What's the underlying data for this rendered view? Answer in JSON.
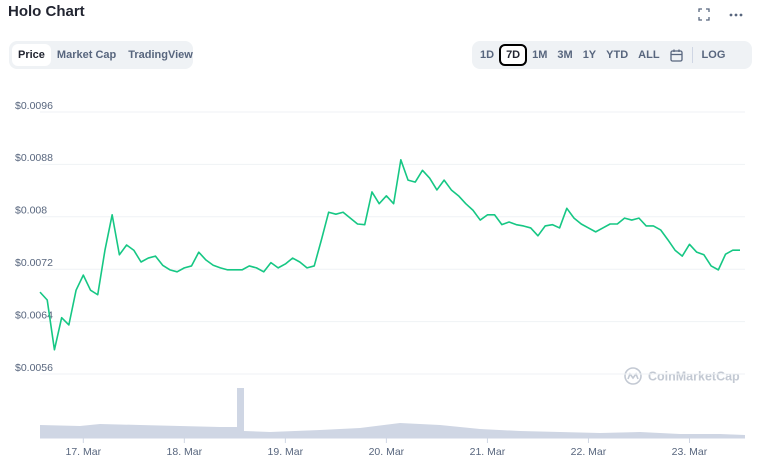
{
  "ui": {
    "tabs": [
      "Price",
      "Market Cap",
      "TradingView"
    ],
    "active_tab": "Price",
    "ranges": [
      "1D",
      "7D",
      "1M",
      "3M",
      "1Y",
      "YTD",
      "ALL"
    ],
    "active_range": "7D",
    "log": "LOG"
  },
  "chart_data": {
    "type": "line",
    "title": "Holo Chart",
    "watermark": "CoinMarketCap",
    "color": "#16c784",
    "grid": true,
    "ylim": [
      0.0051,
      0.0099
    ],
    "yticks": [
      {
        "value": 0.0096,
        "label": "$0.0096"
      },
      {
        "value": 0.0088,
        "label": "$0.0088"
      },
      {
        "value": 0.008,
        "label": "$0.008"
      },
      {
        "value": 0.0072,
        "label": "$0.0072"
      },
      {
        "value": 0.0064,
        "label": "$0.0064"
      },
      {
        "value": 0.0056,
        "label": "$0.0056"
      }
    ],
    "categories": [
      null,
      null,
      null,
      null,
      null,
      null,
      "17. Mar",
      null,
      null,
      null,
      null,
      null,
      null,
      null,
      null,
      null,
      null,
      null,
      null,
      null,
      "18. Mar",
      null,
      null,
      null,
      null,
      null,
      null,
      null,
      null,
      null,
      null,
      null,
      null,
      null,
      "19. Mar",
      null,
      null,
      null,
      null,
      null,
      null,
      null,
      null,
      null,
      null,
      null,
      null,
      null,
      "20. Mar",
      null,
      null,
      null,
      null,
      null,
      null,
      null,
      null,
      null,
      null,
      null,
      null,
      null,
      "21. Mar",
      null,
      null,
      null,
      null,
      null,
      null,
      null,
      null,
      null,
      null,
      null,
      null,
      null,
      "22. Mar",
      null,
      null,
      null,
      null,
      null,
      null,
      null,
      null,
      null,
      null,
      null,
      null,
      null,
      "23. Mar",
      null,
      null,
      null,
      null,
      null,
      null,
      null
    ],
    "values": [
      0.00685,
      0.00673,
      0.00597,
      0.00646,
      0.00635,
      0.00688,
      0.00711,
      0.00688,
      0.00681,
      0.00749,
      0.00803,
      0.00742,
      0.00757,
      0.00749,
      0.00731,
      0.00737,
      0.0074,
      0.00726,
      0.00719,
      0.00716,
      0.00722,
      0.00725,
      0.00746,
      0.00734,
      0.00726,
      0.00722,
      0.00719,
      0.00719,
      0.00719,
      0.00725,
      0.00722,
      0.00716,
      0.0073,
      0.00722,
      0.00728,
      0.00737,
      0.00731,
      0.00722,
      0.00725,
      0.00765,
      0.00807,
      0.00804,
      0.00807,
      0.00798,
      0.00789,
      0.00788,
      0.00838,
      0.0082,
      0.00832,
      0.0082,
      0.00887,
      0.00856,
      0.00853,
      0.00871,
      0.00859,
      0.00841,
      0.00856,
      0.00841,
      0.00832,
      0.0082,
      0.0081,
      0.00795,
      0.00803,
      0.00803,
      0.00788,
      0.00792,
      0.00788,
      0.00786,
      0.00783,
      0.00771,
      0.00786,
      0.00788,
      0.00783,
      0.00813,
      0.00798,
      0.00789,
      0.00783,
      0.00777,
      0.00783,
      0.00789,
      0.00789,
      0.00798,
      0.00795,
      0.00798,
      0.00786,
      0.00786,
      0.0078,
      0.00765,
      0.00749,
      0.0074,
      0.00758,
      0.00746,
      0.00742,
      0.00725,
      0.00719,
      0.00743,
      0.00749,
      0.00749
    ]
  }
}
